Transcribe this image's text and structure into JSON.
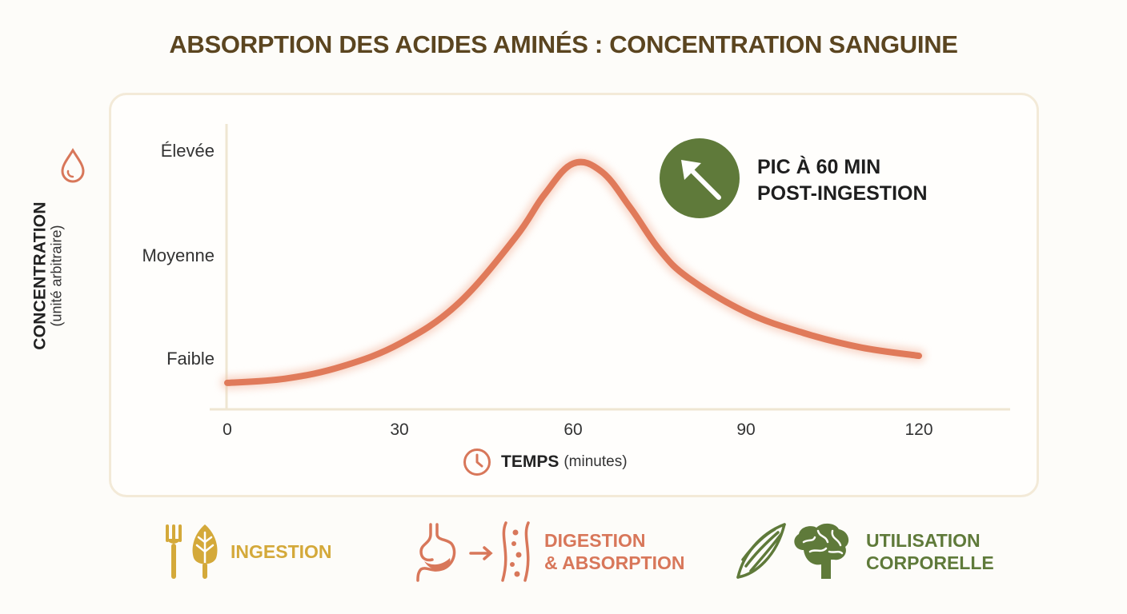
{
  "title": "ABSORPTION DES ACIDES AMINÉS : CONCENTRATION SANGUINE",
  "chart_data": {
    "type": "line",
    "title": "ABSORPTION DES ACIDES AMINÉS : CONCENTRATION SANGUINE",
    "xlabel": "TEMPS",
    "xlabel_unit": "(minutes)",
    "ylabel": "CONCENTRATION",
    "ylabel_unit": "(unité arbitraire)",
    "x_ticks": [
      0,
      30,
      60,
      90,
      120
    ],
    "y_ticks": [
      {
        "label": "Faible",
        "value": 1
      },
      {
        "label": "Moyenne",
        "value": 2
      },
      {
        "label": "Élevée",
        "value": 3
      }
    ],
    "xlim": [
      0,
      135
    ],
    "ylim": [
      0.75,
      3.25
    ],
    "grid": false,
    "series": [
      {
        "color": "#e07a5a",
        "x": [
          0,
          10,
          20,
          30,
          40,
          50,
          55,
          60,
          65,
          70,
          75,
          80,
          90,
          100,
          110,
          120
        ],
        "y": [
          0.77,
          0.81,
          0.93,
          1.15,
          1.53,
          2.17,
          2.58,
          2.88,
          2.8,
          2.45,
          2.05,
          1.78,
          1.45,
          1.25,
          1.11,
          1.03
        ]
      }
    ],
    "annotation": {
      "line1": "PIC À 60 MIN",
      "line2": "POST-INGESTION",
      "x": 60,
      "icon": "arrow-up-left-icon",
      "badge_color": "#5f7a3a"
    }
  },
  "stages": [
    {
      "icon": "fork-leaf-icon",
      "lines": [
        "INGESTION"
      ],
      "color": "#d4a93a"
    },
    {
      "icon": "stomach-to-vessel-icon",
      "lines": [
        "DIGESTION",
        "& ABSORPTION"
      ],
      "color": "#d8775a"
    },
    {
      "icon": "muscle-brain-icon",
      "lines": [
        "UTILISATION",
        "CORPORELLE"
      ],
      "color": "#5f7a3a"
    }
  ],
  "icons": {
    "ylabel_icon": "drop-icon",
    "xlabel_icon": "clock-icon"
  }
}
